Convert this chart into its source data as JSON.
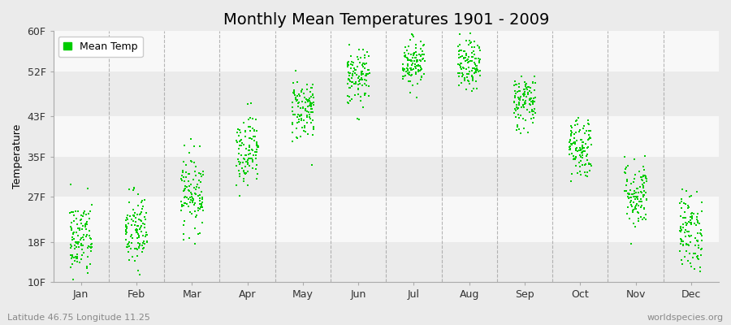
{
  "title": "Monthly Mean Temperatures 1901 - 2009",
  "ylabel": "Temperature",
  "ytick_labels": [
    "10F",
    "18F",
    "27F",
    "35F",
    "43F",
    "52F",
    "60F"
  ],
  "ytick_values": [
    10,
    18,
    27,
    35,
    43,
    52,
    60
  ],
  "ylim": [
    10,
    60
  ],
  "months": [
    "Jan",
    "Feb",
    "Mar",
    "Apr",
    "May",
    "Jun",
    "Jul",
    "Aug",
    "Sep",
    "Oct",
    "Nov",
    "Dec"
  ],
  "n_years": 109,
  "mean_temps_F": [
    18.5,
    20.0,
    28.0,
    36.5,
    44.5,
    50.5,
    54.0,
    53.0,
    46.0,
    37.0,
    27.5,
    20.0
  ],
  "std_temps_F": [
    4.0,
    4.0,
    3.8,
    3.5,
    3.2,
    2.8,
    2.5,
    2.5,
    2.8,
    3.2,
    3.5,
    4.0
  ],
  "dot_color": "#00cc00",
  "dot_size": 3,
  "bg_color_light": "#ebebeb",
  "bg_color_white": "#f8f8f8",
  "grid_color": "#999999",
  "title_fontsize": 14,
  "axis_fontsize": 9,
  "tick_fontsize": 9,
  "legend_label": "Mean Temp",
  "subtitle_left": "Latitude 46.75 Longitude 11.25",
  "subtitle_right": "worldspecies.org",
  "subtitle_fontsize": 8,
  "random_seed": 42,
  "xlim": [
    0,
    12
  ],
  "month_positions": [
    0.5,
    1.5,
    2.5,
    3.5,
    4.5,
    5.5,
    6.5,
    7.5,
    8.5,
    9.5,
    10.5,
    11.5
  ],
  "vline_positions": [
    1,
    2,
    3,
    4,
    5,
    6,
    7,
    8,
    9,
    10,
    11
  ],
  "x_jitter": 0.4
}
